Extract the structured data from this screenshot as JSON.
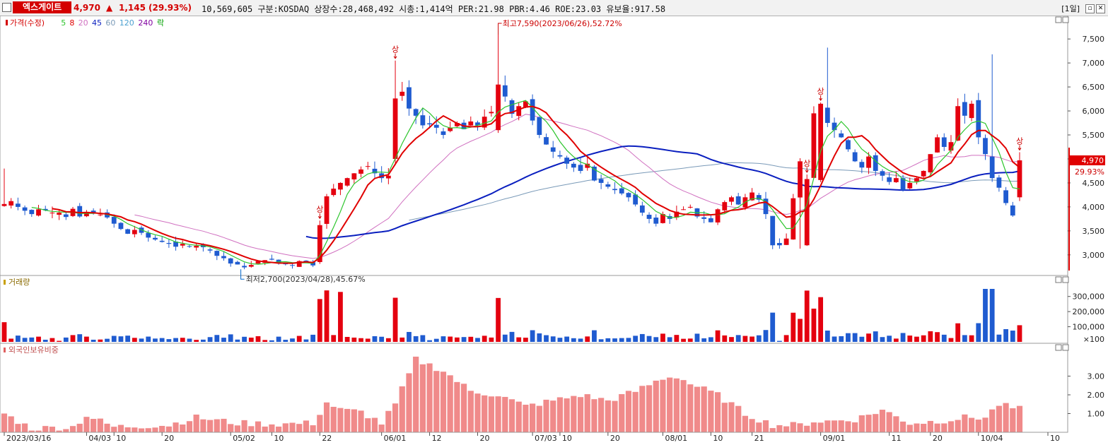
{
  "header": {
    "stock_name": "엑스게이트",
    "price": "4,970",
    "arrow": "▲",
    "change": "1,145",
    "change_pct": "(29.93%)",
    "stats": "10,569,605  구분:KOSDAQ 상장수:28,468,492 시총:1,414억 PER:21.98 PBR:4.46 ROE:23.03 유보율:917.58",
    "period": "[1일]"
  },
  "colors": {
    "up": "#e4000f",
    "down": "#1f5bd0",
    "ma5": "#2dc52d",
    "ma8": "#e00000",
    "ma20": "#d070c0",
    "ma45": "#0a1fbf",
    "ma60": "#7a9ab8",
    "volume_up": "#e4000f",
    "foreign": "#f08a8a"
  },
  "chart_data": [
    {
      "type": "candlestick",
      "title": "가격(수정)",
      "legend": [
        {
          "label": "가격(수정)",
          "color": "#d40000"
        },
        {
          "label": "5",
          "color": "#2dc52d"
        },
        {
          "label": "8",
          "color": "#e00000"
        },
        {
          "label": "20",
          "color": "#d070c0"
        },
        {
          "label": "45",
          "color": "#0a1fbf"
        },
        {
          "label": "60",
          "color": "#7a9ab8"
        },
        {
          "label": "120",
          "color": "#4aa0d0"
        },
        {
          "label": "240",
          "color": "#8000a0"
        },
        {
          "label": "락",
          "color": "#00a000"
        }
      ],
      "ylim": [
        2600,
        7900
      ],
      "yticks": [
        3000,
        3500,
        4000,
        4500,
        5000,
        5500,
        6000,
        6500,
        7000,
        7500
      ],
      "ytick_labels": [
        "3,000",
        "3,500",
        "4,000",
        "4,500",
        "5,000",
        "5,500",
        "6,000",
        "6,500",
        "7,000",
        "7,500"
      ],
      "closes": [
        4060,
        4120,
        4000,
        3920,
        3850,
        3950,
        3930,
        3880,
        3880,
        3790,
        3960,
        3800,
        3890,
        3880,
        3840,
        3780,
        3650,
        3540,
        3440,
        3520,
        3460,
        3360,
        3320,
        3270,
        3230,
        3170,
        3230,
        3180,
        3190,
        3160,
        3090,
        2980,
        2930,
        2820,
        2800,
        2740,
        2790,
        2870,
        2890,
        2900,
        2820,
        2810,
        2780,
        2870,
        2880,
        2780,
        3620,
        4220,
        4380,
        4500,
        4600,
        4700,
        4780,
        4850,
        4700,
        4600,
        4650,
        6260,
        6400,
        6050,
        5900,
        5700,
        5720,
        5650,
        5500,
        5650,
        5750,
        5620,
        5780,
        5700,
        5880,
        5980,
        6550,
        6300,
        5940,
        6100,
        6200,
        5800,
        5500,
        5300,
        5150,
        5050,
        4900,
        4820,
        4750,
        4900,
        4550,
        4500,
        4420,
        4350,
        4280,
        4200,
        4050,
        3880,
        3750,
        3650,
        3850,
        3750,
        3900,
        3950,
        4000,
        3800,
        3750,
        3680,
        3950,
        4100,
        4200,
        4050,
        4200,
        4300,
        4150,
        3850,
        3200,
        3200,
        3340,
        4180,
        4950,
        4580,
        5950,
        6150,
        5750,
        5600,
        5450,
        5200,
        4950,
        4820,
        5050,
        4750,
        4650,
        4520,
        4600,
        4350,
        4500,
        4600,
        4750,
        5100,
        5450,
        5250,
        5350,
        6100,
        5900,
        6150,
        5450,
        5100,
        4600,
        4400,
        4080,
        3820,
        4970
      ],
      "event_labels": [
        {
          "text": "최고7,590(2023/06/26),52.72%"
        },
        {
          "text": "최저2,700(2023/04/28),45.67%"
        },
        {
          "text": "상"
        }
      ],
      "last_price_label": "4,970",
      "last_pct_label": "29.93%",
      "xticks": [
        "2023/03/16",
        "04/03",
        "10",
        "20",
        "05/02",
        "10",
        "22",
        "06/01",
        "12",
        "20",
        "07/03",
        "10",
        "20",
        "08/01",
        "10",
        "21",
        "09/01",
        "11",
        "20",
        "10/04",
        "10"
      ]
    },
    {
      "type": "bar",
      "title": "거래량",
      "yticks": [
        100000,
        200000,
        300000
      ],
      "ytick_labels": [
        "100,000",
        "200,000",
        "300,000"
      ],
      "unit_label": "×100",
      "ylim": [
        0,
        420000
      ]
    },
    {
      "type": "bar",
      "title": "외국인보유비중",
      "yticks": [
        1.0,
        2.0,
        3.0
      ],
      "ytick_labels": [
        "1.00",
        "2.00",
        "3.00"
      ],
      "ylim": [
        0,
        4.3
      ]
    }
  ]
}
